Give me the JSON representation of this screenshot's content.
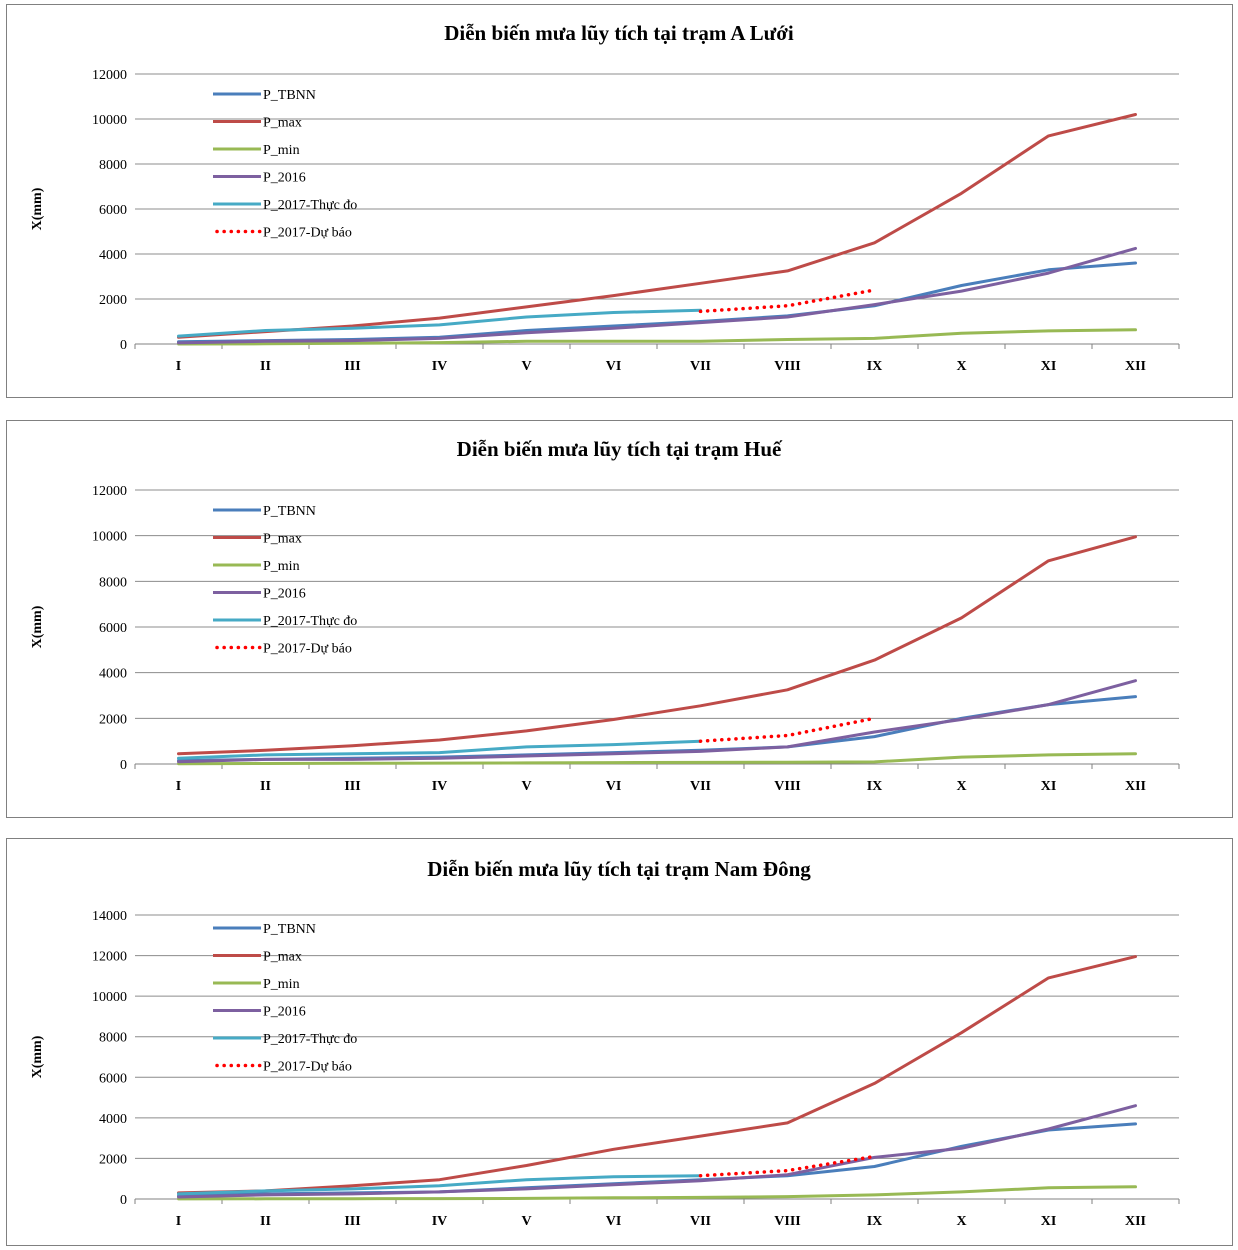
{
  "chart_data": [
    {
      "type": "line",
      "title": "Diễn biến mưa lũy tích tại trạm  A Lưới",
      "xlabel": "",
      "ylabel": "X(mm)",
      "ylim": [
        0,
        12000
      ],
      "yticks": [
        0,
        2000,
        4000,
        6000,
        8000,
        10000,
        12000
      ],
      "grid": true,
      "legend_position": "top-left",
      "categories": [
        "I",
        "II",
        "III",
        "IV",
        "V",
        "VI",
        "VII",
        "VIII",
        "IX",
        "X",
        "XI",
        "XII"
      ],
      "series": [
        {
          "name": "P_TBNN",
          "color": "#4A7EBB",
          "style": "solid",
          "values": [
            100,
            150,
            200,
            300,
            600,
            800,
            1000,
            1250,
            1700,
            2600,
            3300,
            3600
          ]
        },
        {
          "name": "P_max",
          "color": "#BE4B48",
          "style": "solid",
          "values": [
            300,
            550,
            800,
            1150,
            1650,
            2150,
            2700,
            3250,
            4500,
            6700,
            9250,
            10200
          ]
        },
        {
          "name": "P_min",
          "color": "#98B954",
          "style": "solid",
          "values": [
            0,
            10,
            30,
            60,
            120,
            120,
            120,
            200,
            250,
            480,
            580,
            630
          ]
        },
        {
          "name": "P_2016",
          "color": "#7D60A0",
          "style": "solid",
          "values": [
            50,
            120,
            150,
            250,
            500,
            700,
            950,
            1200,
            1750,
            2350,
            3150,
            4250
          ]
        },
        {
          "name": "P_2017-Thực đo",
          "color": "#46AAC5",
          "style": "solid",
          "values": [
            350,
            600,
            700,
            850,
            1200,
            1400,
            1500,
            null,
            null,
            null,
            null,
            null
          ]
        },
        {
          "name": "P_2017-Dự báo",
          "color": "#FF0000",
          "style": "dotted",
          "values": [
            null,
            null,
            null,
            null,
            null,
            null,
            1450,
            1700,
            2400,
            null,
            null,
            null
          ]
        }
      ]
    },
    {
      "type": "line",
      "title": "Diễn biến mưa lũy tích tại trạm Huế",
      "xlabel": "",
      "ylabel": "X(mm)",
      "ylim": [
        0,
        12000
      ],
      "yticks": [
        0,
        2000,
        4000,
        6000,
        8000,
        10000,
        12000
      ],
      "grid": true,
      "legend_position": "top-left",
      "categories": [
        "I",
        "II",
        "III",
        "IV",
        "V",
        "VI",
        "VII",
        "VIII",
        "IX",
        "X",
        "XI",
        "XII"
      ],
      "series": [
        {
          "name": "P_TBNN",
          "color": "#4A7EBB",
          "style": "solid",
          "values": [
            150,
            200,
            250,
            300,
            400,
            500,
            600,
            750,
            1200,
            2000,
            2600,
            2950
          ]
        },
        {
          "name": "P_max",
          "color": "#BE4B48",
          "style": "solid",
          "values": [
            450,
            600,
            800,
            1050,
            1450,
            1950,
            2550,
            3250,
            4550,
            6400,
            8900,
            9950
          ]
        },
        {
          "name": "P_min",
          "color": "#98B954",
          "style": "solid",
          "values": [
            10,
            20,
            30,
            40,
            50,
            60,
            70,
            80,
            90,
            300,
            400,
            450
          ]
        },
        {
          "name": "P_2016",
          "color": "#7D60A0",
          "style": "solid",
          "values": [
            100,
            200,
            200,
            250,
            350,
            450,
            550,
            750,
            1400,
            1950,
            2600,
            3650
          ]
        },
        {
          "name": "P_2017-Thực đo",
          "color": "#46AAC5",
          "style": "solid",
          "values": [
            250,
            400,
            450,
            500,
            750,
            850,
            1000,
            null,
            null,
            null,
            null,
            null
          ]
        },
        {
          "name": "P_2017-Dự báo",
          "color": "#FF0000",
          "style": "dotted",
          "values": [
            null,
            null,
            null,
            null,
            null,
            null,
            1000,
            1250,
            2000,
            null,
            null,
            null
          ]
        }
      ]
    },
    {
      "type": "line",
      "title": "Diễn biến mưa lũy tích tại trạm Nam Đông",
      "xlabel": "",
      "ylabel": "X(mm)",
      "ylim": [
        0,
        14000
      ],
      "yticks": [
        0,
        2000,
        4000,
        6000,
        8000,
        10000,
        12000,
        14000
      ],
      "grid": true,
      "legend_position": "top-left",
      "categories": [
        "I",
        "II",
        "III",
        "IV",
        "V",
        "VI",
        "VII",
        "VIII",
        "IX",
        "X",
        "XI",
        "XII"
      ],
      "series": [
        {
          "name": "P_TBNN",
          "color": "#4A7EBB",
          "style": "solid",
          "values": [
            150,
            250,
            300,
            350,
            550,
            750,
            950,
            1150,
            1600,
            2600,
            3400,
            3700
          ]
        },
        {
          "name": "P_max",
          "color": "#BE4B48",
          "style": "solid",
          "values": [
            300,
            400,
            650,
            950,
            1650,
            2450,
            3100,
            3750,
            5700,
            8200,
            10900,
            11950
          ]
        },
        {
          "name": "P_min",
          "color": "#98B954",
          "style": "solid",
          "values": [
            5,
            10,
            15,
            20,
            30,
            60,
            80,
            120,
            200,
            350,
            550,
            600
          ]
        },
        {
          "name": "P_2016",
          "color": "#7D60A0",
          "style": "solid",
          "values": [
            100,
            200,
            250,
            350,
            500,
            700,
            900,
            1200,
            2050,
            2500,
            3450,
            4600
          ]
        },
        {
          "name": "P_2017-Thực đo",
          "color": "#46AAC5",
          "style": "solid",
          "values": [
            250,
            400,
            500,
            650,
            950,
            1100,
            1150,
            null,
            null,
            null,
            null,
            null
          ]
        },
        {
          "name": "P_2017-Dự báo",
          "color": "#FF0000",
          "style": "dotted",
          "values": [
            null,
            null,
            null,
            null,
            null,
            null,
            1150,
            1400,
            2100,
            null,
            null,
            null
          ]
        }
      ]
    }
  ]
}
